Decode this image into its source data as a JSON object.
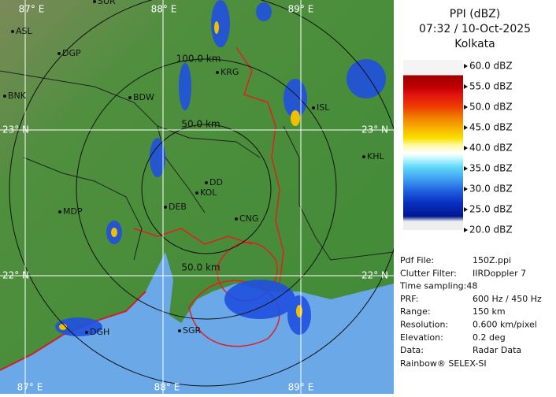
{
  "map": {
    "grid_labels": [
      "87° E",
      "88° E",
      "89° E",
      "23° N",
      "23° N",
      "22° N",
      "22° N",
      "87° E",
      "88° E",
      "89° E"
    ],
    "ring_labels": [
      "100.0 km",
      "50.0 km",
      "50.0 km"
    ],
    "places": [
      "SUR",
      "ASL",
      "DGP",
      "BNK",
      "BDW",
      "KRG",
      "ISL",
      "KHL",
      "DD",
      "KOL",
      "DEB",
      "CNG",
      "MDP",
      "DGH",
      "SGR"
    ]
  },
  "panel": {
    "title": "PPI (dBZ)",
    "time": "07:32 / 10-Oct-2025",
    "site": "Kolkata",
    "scale": [
      "60.0 dBZ",
      "55.0 dBZ",
      "50.0 dBZ",
      "45.0 dBZ",
      "40.0 dBZ",
      "35.0 dBZ",
      "30.0 dBZ",
      "25.0 dBZ",
      "20.0 dBZ"
    ],
    "info": [
      [
        "Pdf File:",
        "150Z.ppi"
      ],
      [
        "Clutter Filter:",
        "IIRDoppler 7"
      ],
      [
        "Time sampling:48"
      ],
      [
        "PRF:",
        "600 Hz / 450 Hz"
      ],
      [
        "Range:",
        "150 km"
      ],
      [
        "Resolution:",
        "0.600 km/pixel"
      ],
      [
        "Elevation:",
        "0.2 deg"
      ],
      [
        "Data:",
        "Radar Data"
      ]
    ],
    "footer": "Rainbow® SELEX-SI"
  }
}
